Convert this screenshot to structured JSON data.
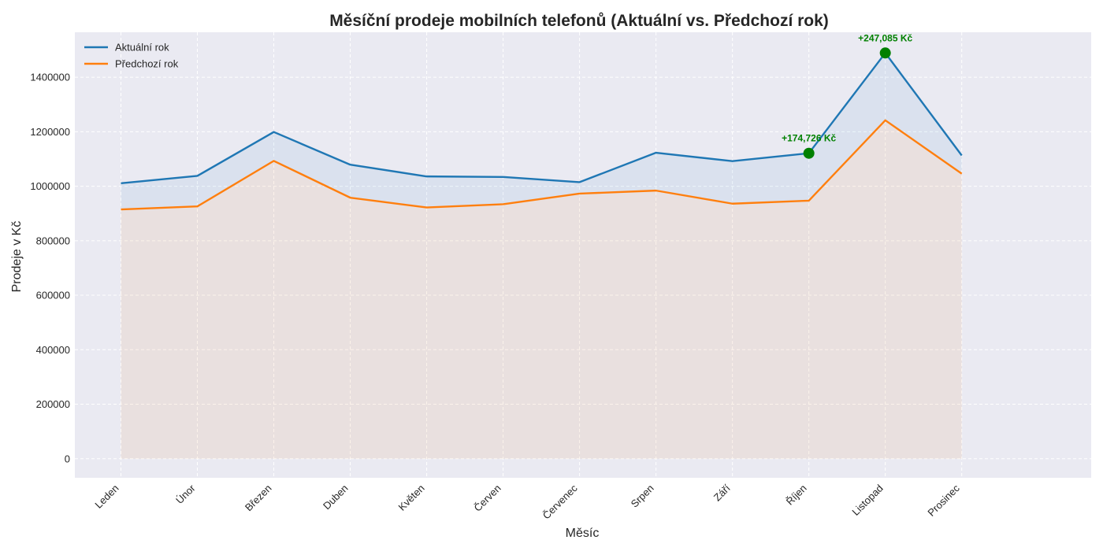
{
  "chart_data": {
    "type": "line",
    "title": "Měsíční prodeje mobilních telefonů (Aktuální vs. Předchozí rok)",
    "xlabel": "Měsíc",
    "ylabel": "Prodeje v Kč",
    "categories": [
      "Leden",
      "Únor",
      "Březen",
      "Duben",
      "Květen",
      "Červen",
      "Červenec",
      "Srpen",
      "Září",
      "Říjen",
      "Listopad",
      "Prosinec"
    ],
    "series": [
      {
        "name": "Aktuální rok",
        "color": "#1f77b4",
        "values": [
          1011000,
          1038000,
          1199000,
          1079000,
          1036000,
          1034000,
          1015000,
          1123000,
          1092000,
          1121000,
          1489000,
          1113000
        ]
      },
      {
        "name": "Předchozí rok",
        "color": "#ff7f0e",
        "values": [
          915000,
          926000,
          1093000,
          958000,
          922000,
          934000,
          973000,
          984000,
          936000,
          947000,
          1242000,
          1046000
        ]
      }
    ],
    "yticks": [
      0,
      200000,
      400000,
      600000,
      800000,
      1000000,
      1200000,
      1400000
    ],
    "ylim": [
      -70000,
      1565000
    ],
    "grid": true,
    "legend_position": "top-left",
    "annotations": [
      {
        "category": "Říjen",
        "value": 1121000,
        "text": "+174,726 Kč",
        "color": "#008000"
      },
      {
        "category": "Listopad",
        "value": 1489000,
        "text": "+247,085 Kč",
        "color": "#008000"
      }
    ]
  }
}
